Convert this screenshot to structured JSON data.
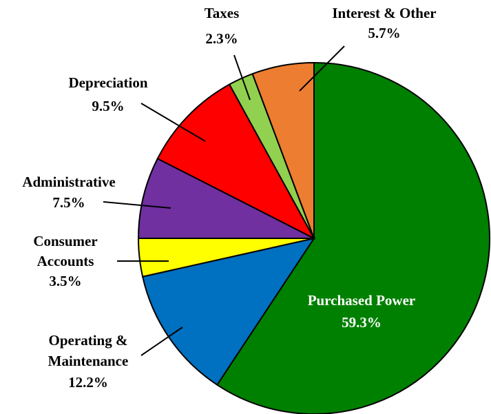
{
  "chart_data": {
    "type": "pie",
    "categories": [
      "Purchased Power",
      "Operating & Maintenance",
      "Consumer Accounts",
      "Administrative",
      "Depreciation",
      "Taxes",
      "Interest & Other"
    ],
    "values": [
      59.3,
      12.2,
      3.5,
      7.5,
      9.5,
      2.3,
      5.7
    ],
    "value_labels": [
      "59.3%",
      "12.2%",
      "3.5%",
      "7.5%",
      "9.5%",
      "2.3%",
      "5.7%"
    ],
    "colors": [
      "#008000",
      "#0070c0",
      "#ffff00",
      "#7030a0",
      "#ff0000",
      "#92d050",
      "#ed7d31"
    ]
  }
}
